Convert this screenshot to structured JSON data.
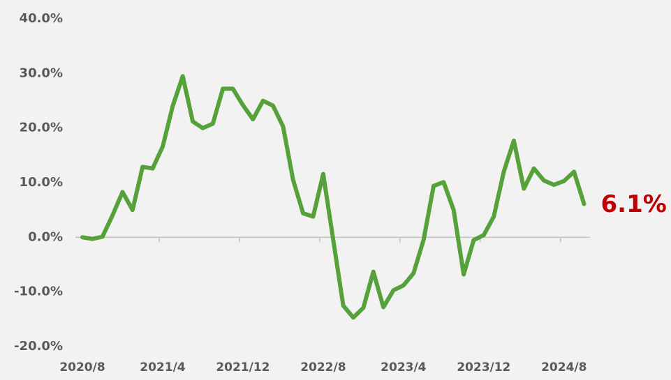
{
  "chart_data": {
    "type": "line",
    "categories": [
      "2020/8",
      null,
      null,
      null,
      null,
      null,
      null,
      null,
      "2021/4",
      null,
      null,
      null,
      null,
      null,
      null,
      null,
      "2021/12",
      null,
      null,
      null,
      null,
      null,
      null,
      null,
      "2022/8",
      null,
      null,
      null,
      null,
      null,
      null,
      null,
      "2023/4",
      null,
      null,
      null,
      null,
      null,
      null,
      null,
      "2023/12",
      null,
      null,
      null,
      null,
      null,
      null,
      null,
      "2024/8",
      null,
      null
    ],
    "series": [
      {
        "color": "#56a13a",
        "values": [
          0.0,
          -0.3,
          0.1,
          4.0,
          8.3,
          5.0,
          12.9,
          12.6,
          16.6,
          24.0,
          29.5,
          21.2,
          20.0,
          20.8,
          27.2,
          27.2,
          24.2,
          21.6,
          25.0,
          24.1,
          20.3,
          10.5,
          4.4,
          3.8,
          11.6,
          -0.5,
          -12.5,
          -14.7,
          -12.9,
          -6.3,
          -12.8,
          -9.7,
          -8.8,
          -6.6,
          -0.5,
          9.4,
          10.1,
          5.0,
          -6.8,
          -0.5,
          0.4,
          3.8,
          12.0,
          17.7,
          8.9,
          12.6,
          10.4,
          9.6,
          10.3,
          12.0,
          6.1
        ],
        "value_labels": [
          null,
          null,
          null,
          null,
          null,
          null,
          null,
          null,
          null,
          null,
          null,
          null,
          null,
          null,
          null,
          null,
          null,
          null,
          null,
          null,
          null,
          null,
          null,
          null,
          null,
          null,
          null,
          null,
          null,
          null,
          null,
          null,
          null,
          null,
          null,
          null,
          null,
          null,
          null,
          null,
          null,
          null,
          null,
          null,
          null,
          null,
          null,
          null,
          null,
          null,
          "6.1%"
        ]
      }
    ],
    "ylim": [
      -20,
      40
    ],
    "yticks": [
      {
        "value": -20,
        "label": "-20.0%"
      },
      {
        "value": -10,
        "label": "-10.0%"
      },
      {
        "value": 0,
        "label": "0.0%"
      },
      {
        "value": 10,
        "label": "10.0%"
      },
      {
        "value": 20,
        "label": "20.0%"
      },
      {
        "value": 30,
        "label": "30.0%"
      },
      {
        "value": 40,
        "label": "40.0%"
      }
    ]
  }
}
